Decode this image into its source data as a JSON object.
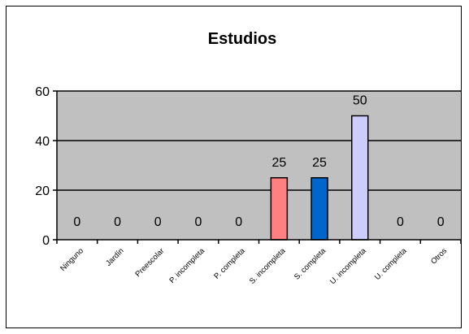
{
  "chart_data": {
    "type": "bar",
    "title": "Estudios",
    "categories": [
      "Ninguno",
      "Jardín",
      "Preescolar",
      "P. incompleta",
      "P. completa",
      "S. incompleta",
      "S. completa",
      "U. incompleta",
      "U. completa",
      "Otros"
    ],
    "values": [
      0,
      0,
      0,
      0,
      0,
      25,
      25,
      50,
      0,
      0
    ],
    "data_labels": [
      "0",
      "0",
      "0",
      "0",
      "0",
      "25",
      "25",
      "50",
      "0",
      "0"
    ],
    "bar_colors": [
      "#c0c0c0",
      "#c0c0c0",
      "#c0c0c0",
      "#c0c0c0",
      "#c0c0c0",
      "#ff8080",
      "#0066cc",
      "#ccccff",
      "#c0c0c0",
      "#c0c0c0"
    ],
    "ylim": [
      0,
      60
    ],
    "yticks": [
      0,
      20,
      40,
      60
    ],
    "ytick_labels": [
      "0",
      "20",
      "40",
      "60"
    ],
    "xlabel": "",
    "ylabel": "",
    "grid": true,
    "legend": "none",
    "plot_background": "#c0c0c0"
  }
}
